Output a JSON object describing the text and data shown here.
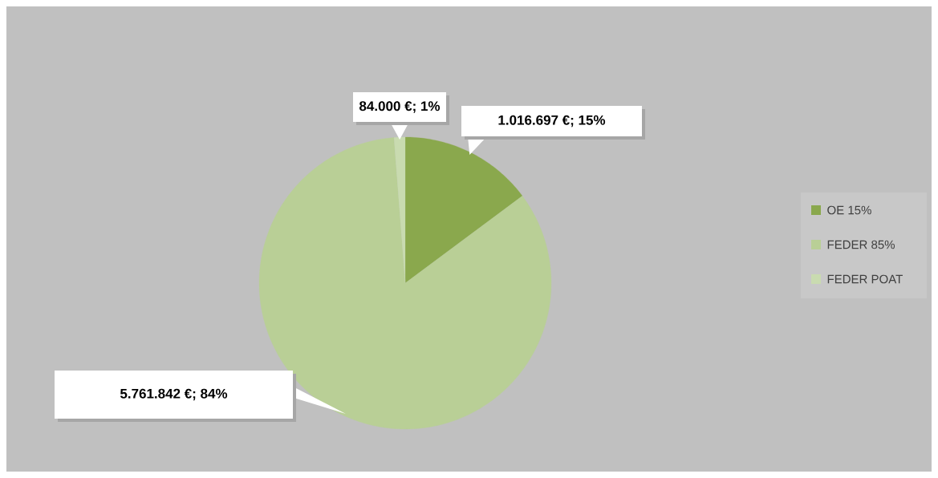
{
  "chart_data": {
    "type": "pie",
    "categories": [
      "OE 15%",
      "FEDER 85%",
      "FEDER POAT"
    ],
    "values": [
      1016697,
      5761842,
      84000
    ],
    "colors": [
      "#8aa84d",
      "#b9cf96",
      "#c9dbb0"
    ],
    "value_labels": [
      "1.016.697 €; 15%",
      "5.761.842 €; 84%",
      "84.000 €; 1%"
    ],
    "legend": "right"
  }
}
